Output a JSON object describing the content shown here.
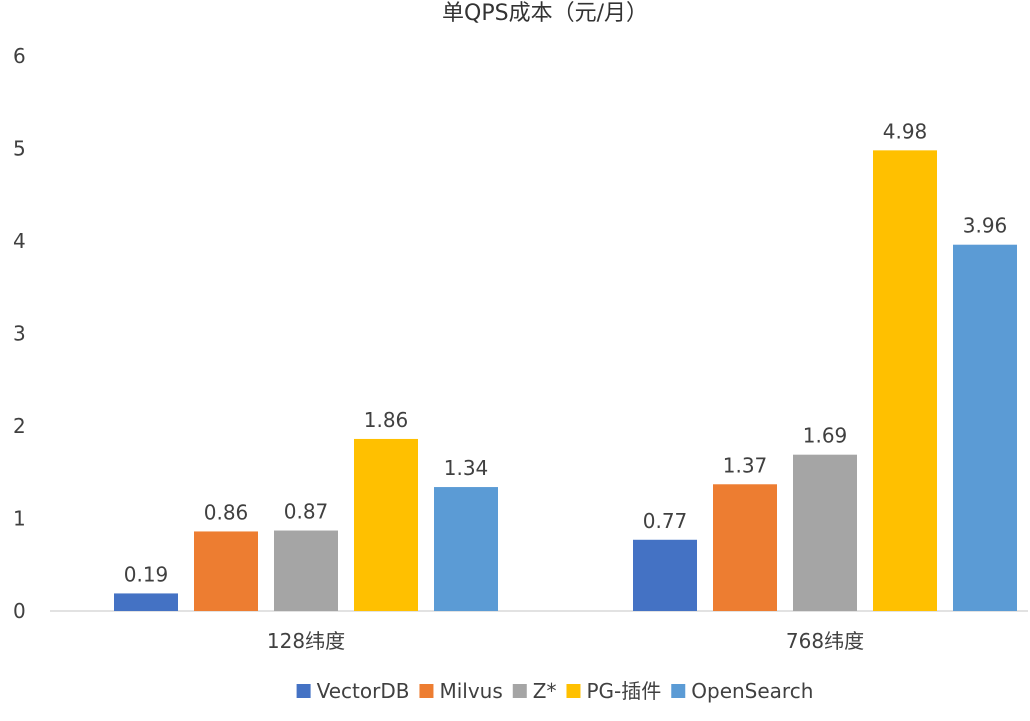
{
  "chart_data": {
    "type": "bar",
    "title": "单QPS成本（元/月）",
    "categories": [
      "128纬度",
      "768纬度"
    ],
    "series": [
      {
        "name": "VectorDB",
        "values": [
          0.19,
          0.77
        ]
      },
      {
        "name": "Milvus",
        "values": [
          0.86,
          1.37
        ]
      },
      {
        "name": "Z*",
        "values": [
          0.87,
          1.69
        ]
      },
      {
        "name": "PG-插件",
        "values": [
          1.86,
          4.98
        ]
      },
      {
        "name": "OpenSearch",
        "values": [
          1.34,
          3.96
        ]
      }
    ],
    "ylim": [
      0,
      6
    ],
    "yticks": [
      0,
      1,
      2,
      3,
      4,
      5,
      6
    ],
    "grid": false,
    "legend_position": "bottom",
    "colors": [
      "#4472C4",
      "#ED7D31",
      "#A5A5A5",
      "#FFC000",
      "#5B9BD5"
    ]
  }
}
